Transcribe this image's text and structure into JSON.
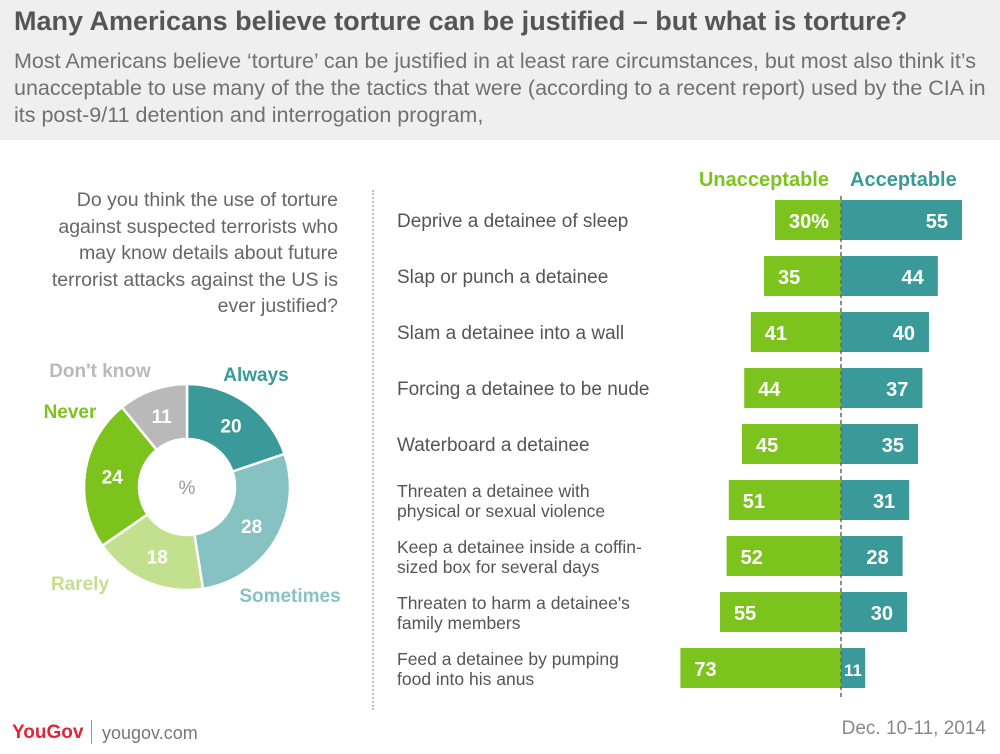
{
  "title": "Many Americans believe torture can be justified – but what is torture?",
  "subtitle": "Most Americans believe ‘torture’ can be justified in at least rare circumstances, but most also think it’s unacceptable to use many of the the tactics that were (according to a recent report) used by the CIA in its post-9/11 detention and interrogation program,",
  "question": "Do you think the use of torture against suspected terrorists who may know details about future terrorist attacks against the US is ever justified?",
  "colors": {
    "unacceptable": "#7dc31e",
    "acceptable": "#3a9a9a",
    "always": "#3a9a9a",
    "sometimes": "#86c2c2",
    "rarely": "#c3e08e",
    "never": "#7dc31e",
    "dont_know": "#b9b9b9"
  },
  "footer": {
    "logo": "YouGov",
    "site": "yougov.com",
    "date": "Dec. 10-11, 2014"
  },
  "chart_data": [
    {
      "type": "pie",
      "center_label": "%",
      "slices": [
        {
          "label": "Always",
          "value": 20
        },
        {
          "label": "Sometimes",
          "value": 28
        },
        {
          "label": "Rarely",
          "value": 18
        },
        {
          "label": "Never",
          "value": 24
        },
        {
          "label": "Don't know",
          "value": 11
        }
      ]
    },
    {
      "type": "bar",
      "orientation": "horizontal-diverging",
      "categories": [
        "Deprive a detainee of sleep",
        "Slap or punch a detainee",
        "Slam a detainee into a wall",
        "Forcing a detainee to be nude",
        "Waterboard a detainee",
        "Threaten a detainee with physical or sexual violence",
        "Keep a detainee inside a coffin-sized box for several days",
        "Threaten to harm a detainee's family members",
        "Feed a detainee by pumping food into his anus"
      ],
      "category_lines": [
        [
          "Deprive a detainee of sleep"
        ],
        [
          "Slap or punch a detainee"
        ],
        [
          "Slam a detainee into a wall"
        ],
        [
          "Forcing a detainee to be nude"
        ],
        [
          "Waterboard a detainee"
        ],
        [
          "Threaten a detainee with",
          "physical or sexual violence"
        ],
        [
          "Keep a detainee inside a coffin-",
          "sized box for several days"
        ],
        [
          "Threaten to harm a detainee's",
          "family members"
        ],
        [
          "Feed a detainee by pumping",
          "food into his anus"
        ]
      ],
      "series": [
        {
          "name": "Unacceptable",
          "values": [
            30,
            35,
            41,
            44,
            45,
            51,
            52,
            55,
            73
          ],
          "labels": [
            "30%",
            "35",
            "41",
            "44",
            "45",
            "51",
            "52",
            "55",
            "73"
          ]
        },
        {
          "name": "Acceptable",
          "values": [
            55,
            44,
            40,
            37,
            35,
            31,
            28,
            30,
            11
          ],
          "labels": [
            "55",
            "44",
            "40",
            "37",
            "35",
            "31",
            "28",
            "30",
            "11"
          ]
        }
      ]
    }
  ]
}
